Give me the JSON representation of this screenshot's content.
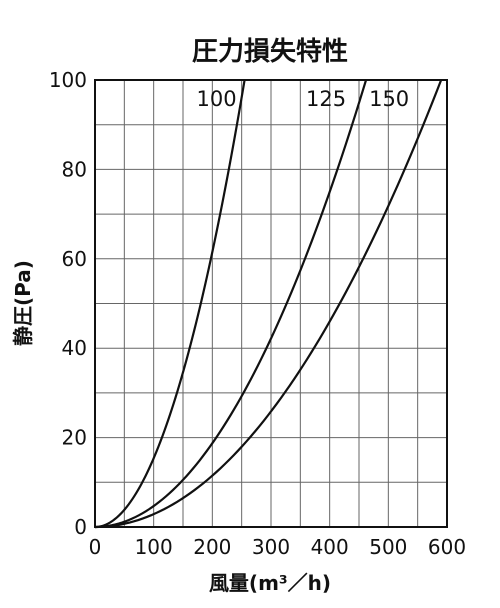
{
  "chart_data": {
    "type": "line",
    "title": "圧力損失特性",
    "xlabel": "風量(m³／h)",
    "ylabel": "静圧(Pa)",
    "xlim": [
      0,
      600
    ],
    "ylim": [
      0,
      100
    ],
    "xticks": [
      "0",
      "100",
      "200",
      "300",
      "400",
      "500",
      "600"
    ],
    "yticks": [
      "0",
      "20",
      "40",
      "60",
      "80",
      "100"
    ],
    "grid": true,
    "series": [
      {
        "name": "100",
        "x": [
          0,
          50,
          100,
          150,
          200,
          255
        ],
        "y": [
          0,
          3.9,
          15.4,
          34.6,
          61.5,
          100
        ]
      },
      {
        "name": "125",
        "x": [
          0,
          50,
          100,
          150,
          200,
          250,
          300,
          350,
          400,
          462
        ],
        "y": [
          0,
          1.2,
          4.7,
          10.5,
          18.7,
          29.3,
          42.2,
          57.4,
          75.0,
          100
        ]
      },
      {
        "name": "150",
        "x": [
          0,
          50,
          100,
          150,
          200,
          250,
          300,
          350,
          400,
          450,
          500,
          550,
          590
        ],
        "y": [
          0,
          0.7,
          2.9,
          6.5,
          11.5,
          18.0,
          25.9,
          35.2,
          46.0,
          58.2,
          71.8,
          86.9,
          100
        ]
      }
    ]
  }
}
